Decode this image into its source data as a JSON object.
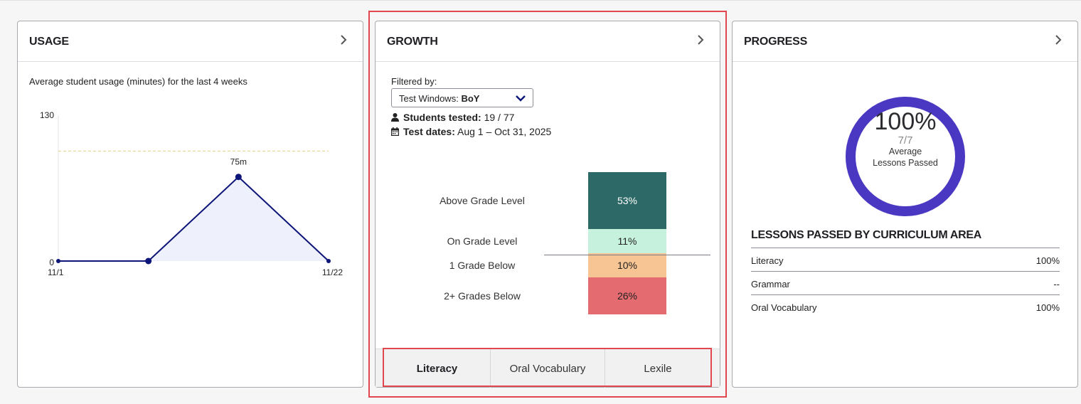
{
  "usage": {
    "title": "USAGE",
    "subtitle": "Average student usage (minutes) for the last 4 weeks",
    "chart_data": {
      "type": "area",
      "x": [
        "11/1",
        "11/8",
        "11/15",
        "11/22"
      ],
      "xtick_labels": [
        "11/1",
        "11/22"
      ],
      "values": [
        0,
        0,
        75,
        0
      ],
      "ylim": [
        0,
        130
      ],
      "ytick_labels": [
        "130",
        "0"
      ],
      "reference_line": 98,
      "point_label": "75m",
      "line_color": "#0d1578",
      "fill_color": "#eef0fb",
      "reference_color": "#e3dca0"
    }
  },
  "growth": {
    "title": "GROWTH",
    "filter_label": "Filtered by:",
    "dropdown": {
      "key": "Test Windows:",
      "value": "BoY"
    },
    "students_tested": {
      "label": "Students tested:",
      "value": "19 / 77"
    },
    "test_dates": {
      "label": "Test dates:",
      "value": "Aug 1 – Oct 31, 2025"
    },
    "chart_data": {
      "type": "bar",
      "stacked": true,
      "categories": [
        "Above Grade Level",
        "On Grade Level",
        "1 Grade Below",
        "2+ Grades Below"
      ],
      "values": [
        53,
        11,
        10,
        26
      ],
      "value_labels": [
        "53%",
        "11%",
        "10%",
        "26%"
      ],
      "colors": [
        "#2d6966",
        "#c6f1dd",
        "#f7c493",
        "#e46b70"
      ]
    },
    "tabs": [
      {
        "label": "Literacy"
      },
      {
        "label": "Oral Vocabulary"
      },
      {
        "label": "Lexile"
      }
    ]
  },
  "progress": {
    "title": "PROGRESS",
    "percent_label": "100%",
    "percent": 100,
    "fraction": "7/7",
    "label_line1": "Average",
    "label_line2": "Lessons Passed",
    "ring_color": "#4b38c2",
    "section_title": "LESSONS PASSED BY CURRICULUM AREA",
    "rows": [
      {
        "name": "Literacy",
        "value": "100%"
      },
      {
        "name": "Grammar",
        "value": "--"
      },
      {
        "name": "Oral Vocabulary",
        "value": "100%"
      }
    ]
  }
}
